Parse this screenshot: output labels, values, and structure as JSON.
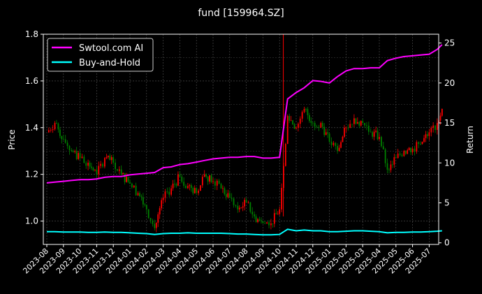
{
  "chart_data": {
    "type": "line",
    "title": "fund [159964.SZ]",
    "ylabel_left": "Price",
    "ylabel_right": "Return",
    "ylim_left": [
      0.9,
      1.8
    ],
    "ylim_right": [
      -0.2,
      26.1
    ],
    "yticks_left": [
      "1.0",
      "1.2",
      "1.4",
      "1.6",
      "1.8"
    ],
    "yticks_right": [
      "0",
      "5",
      "10",
      "15",
      "20",
      "25"
    ],
    "xticks": [
      "2023-08",
      "2023-09",
      "2023-10",
      "2023-11",
      "2023-12",
      "2024-01",
      "2024-02",
      "2024-03",
      "2024-04",
      "2024-05",
      "2024-06",
      "2024-07",
      "2024-08",
      "2024-09",
      "2024-10",
      "2024-11",
      "2024-12",
      "2025-01",
      "2025-02",
      "2025-03",
      "2025-04",
      "2025-05",
      "2025-06",
      "2025-07"
    ],
    "grid": true,
    "legend_placement": "top-left",
    "x": [
      "2023-08-01",
      "2023-08-16",
      "2023-09-01",
      "2023-09-16",
      "2023-10-01",
      "2023-10-16",
      "2023-11-01",
      "2023-11-16",
      "2023-12-01",
      "2023-12-16",
      "2024-01-01",
      "2024-01-16",
      "2024-02-01",
      "2024-02-16",
      "2024-03-01",
      "2024-03-16",
      "2024-04-01",
      "2024-04-16",
      "2024-05-01",
      "2024-05-16",
      "2024-06-01",
      "2024-06-16",
      "2024-07-01",
      "2024-07-16",
      "2024-08-01",
      "2024-08-16",
      "2024-09-01",
      "2024-09-16",
      "2024-10-01",
      "2024-10-16",
      "2024-11-01",
      "2024-11-16",
      "2024-12-01",
      "2024-12-16",
      "2025-01-01",
      "2025-01-16",
      "2025-02-01",
      "2025-02-16",
      "2025-03-01",
      "2025-03-16",
      "2025-04-01",
      "2025-04-16",
      "2025-05-01",
      "2025-05-16",
      "2025-06-01",
      "2025-06-16",
      "2025-07-01",
      "2025-07-16",
      "2025-07-25"
    ],
    "price": [
      1.38,
      1.42,
      1.35,
      1.3,
      1.27,
      1.25,
      1.2,
      1.27,
      1.25,
      1.2,
      1.16,
      1.12,
      1.05,
      0.97,
      1.1,
      1.14,
      1.19,
      1.15,
      1.12,
      1.2,
      1.17,
      1.14,
      1.1,
      1.05,
      1.08,
      1.02,
      0.99,
      0.99,
      1.05,
      1.45,
      1.4,
      1.48,
      1.42,
      1.42,
      1.34,
      1.3,
      1.4,
      1.44,
      1.42,
      1.38,
      1.36,
      1.22,
      1.27,
      1.3,
      1.31,
      1.33,
      1.38,
      1.42,
      1.48
    ],
    "series": [
      {
        "name": "Swtool.com AI",
        "color": "#ff00ff",
        "axis": "right",
        "values": [
          7.5,
          7.6,
          7.7,
          7.8,
          7.9,
          7.9,
          8.0,
          8.2,
          8.3,
          8.3,
          8.5,
          8.6,
          8.7,
          8.8,
          9.4,
          9.5,
          9.8,
          9.9,
          10.1,
          10.3,
          10.5,
          10.6,
          10.7,
          10.7,
          10.8,
          10.8,
          10.6,
          10.6,
          10.7,
          18.0,
          18.8,
          19.4,
          20.3,
          20.2,
          20.0,
          20.8,
          21.5,
          21.8,
          21.8,
          21.9,
          21.9,
          22.8,
          23.1,
          23.3,
          23.4,
          23.5,
          23.6,
          24.2,
          24.8
        ]
      },
      {
        "name": "Buy-and-Hold",
        "color": "#00ffff",
        "axis": "right",
        "values": [
          1.4,
          1.4,
          1.35,
          1.35,
          1.35,
          1.3,
          1.3,
          1.35,
          1.3,
          1.3,
          1.25,
          1.2,
          1.15,
          1.05,
          1.15,
          1.2,
          1.2,
          1.25,
          1.2,
          1.2,
          1.2,
          1.2,
          1.15,
          1.1,
          1.1,
          1.05,
          1.0,
          1.0,
          1.05,
          1.7,
          1.5,
          1.6,
          1.5,
          1.5,
          1.4,
          1.4,
          1.45,
          1.5,
          1.5,
          1.45,
          1.4,
          1.25,
          1.3,
          1.3,
          1.35,
          1.35,
          1.4,
          1.45,
          1.5
        ]
      }
    ],
    "candle_colors": {
      "up": "#ff0000",
      "down": "#008000"
    }
  }
}
